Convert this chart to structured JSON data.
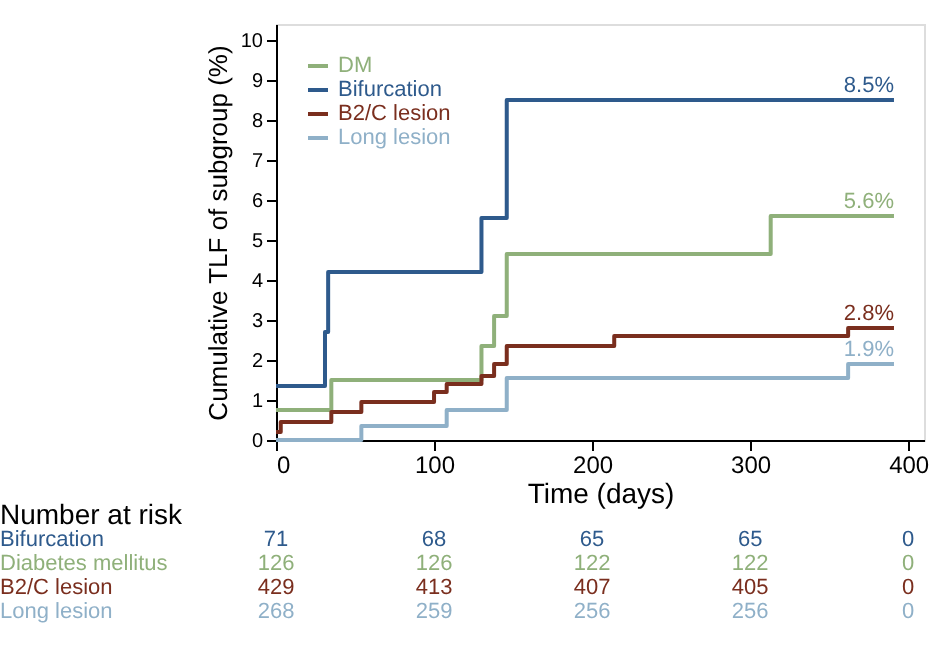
{
  "chart_data": {
    "type": "step",
    "xlabel": "Time (days)",
    "ylabel": "Cumulative TLF of subgroup (%)",
    "xlim": [
      0,
      410
    ],
    "xticks": [
      0,
      100,
      200,
      300,
      400
    ],
    "ylim": [
      0,
      10.4
    ],
    "yticks": [
      0,
      1,
      2,
      3,
      4,
      5,
      6,
      7,
      8,
      9,
      10
    ],
    "grid": false,
    "legend": "top left",
    "marker": "none",
    "line_style": "solid",
    "series": [
      {
        "name": "DM",
        "color": "#8fb07a",
        "x": [
          0,
          35,
          130,
          138,
          146,
          313,
          391
        ],
        "values": [
          0.75,
          1.5,
          2.35,
          3.1,
          4.65,
          5.6,
          5.6
        ],
        "value_labels": [
          null,
          null,
          null,
          null,
          null,
          null,
          "5.6%"
        ]
      },
      {
        "name": "Bifurcation",
        "color": "#2e5a8c",
        "x": [
          0,
          31,
          33,
          130,
          146,
          391
        ],
        "values": [
          1.35,
          2.7,
          4.2,
          5.55,
          8.5,
          8.5
        ],
        "value_labels": [
          null,
          null,
          null,
          null,
          null,
          "8.5%"
        ]
      },
      {
        "name": "B2/C lesion",
        "color": "#7a2e1e",
        "x": [
          0,
          3,
          35,
          54,
          100,
          108,
          130,
          138,
          146,
          214,
          362,
          391
        ],
        "values": [
          0.2,
          0.45,
          0.7,
          0.95,
          1.2,
          1.4,
          1.6,
          1.9,
          2.35,
          2.6,
          2.8,
          2.8
        ],
        "value_labels": [
          null,
          null,
          null,
          null,
          null,
          null,
          null,
          null,
          null,
          null,
          null,
          "2.8%"
        ]
      },
      {
        "name": "Long lesion",
        "color": "#8fb0c8",
        "x": [
          0,
          54,
          108,
          146,
          362,
          391
        ],
        "values": [
          0,
          0.35,
          0.75,
          1.55,
          1.9,
          1.9
        ],
        "value_labels": [
          null,
          null,
          null,
          null,
          null,
          "1.9%"
        ]
      }
    ],
    "annotations": [
      "Number at risk",
      "Bifurcation",
      "71",
      "68",
      "65",
      "65",
      "0",
      "Diabetes mellitus",
      "126",
      "126",
      "122",
      "122",
      "0",
      "B2/C lesion",
      "429",
      "413",
      "407",
      "405",
      "0",
      "Long lesion",
      "268",
      "259",
      "256",
      "256",
      "0"
    ]
  }
}
